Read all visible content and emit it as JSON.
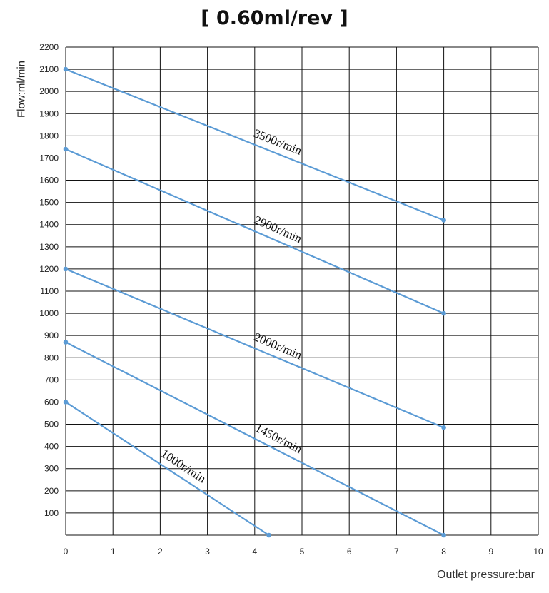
{
  "chart_data": {
    "type": "line",
    "title": "[ 0.60ml/rev ]",
    "xlabel": "Outlet pressure:bar",
    "ylabel": "Flow:ml/min",
    "xlim": [
      0,
      10
    ],
    "ylim": [
      0,
      2200
    ],
    "x_ticks": [
      0,
      1,
      2,
      3,
      4,
      5,
      6,
      7,
      8,
      9,
      10
    ],
    "y_ticks": [
      100,
      200,
      300,
      400,
      500,
      600,
      700,
      800,
      900,
      1000,
      1100,
      1200,
      1300,
      1400,
      1500,
      1600,
      1700,
      1800,
      1900,
      2000,
      2100,
      2200
    ],
    "grid": true,
    "line_color": "#5b9bd5",
    "series": [
      {
        "name": "3500r/min",
        "x": [
          0,
          8
        ],
        "y": [
          2100,
          1420
        ]
      },
      {
        "name": "2900r/min",
        "x": [
          0,
          8
        ],
        "y": [
          1740,
          1000
        ]
      },
      {
        "name": "2000r/min",
        "x": [
          0,
          8
        ],
        "y": [
          1200,
          485
        ]
      },
      {
        "name": "1450r/min",
        "x": [
          0,
          8
        ],
        "y": [
          870,
          0
        ]
      },
      {
        "name": "1000r/min",
        "x": [
          0,
          4.3
        ],
        "y": [
          600,
          0
        ]
      }
    ]
  }
}
